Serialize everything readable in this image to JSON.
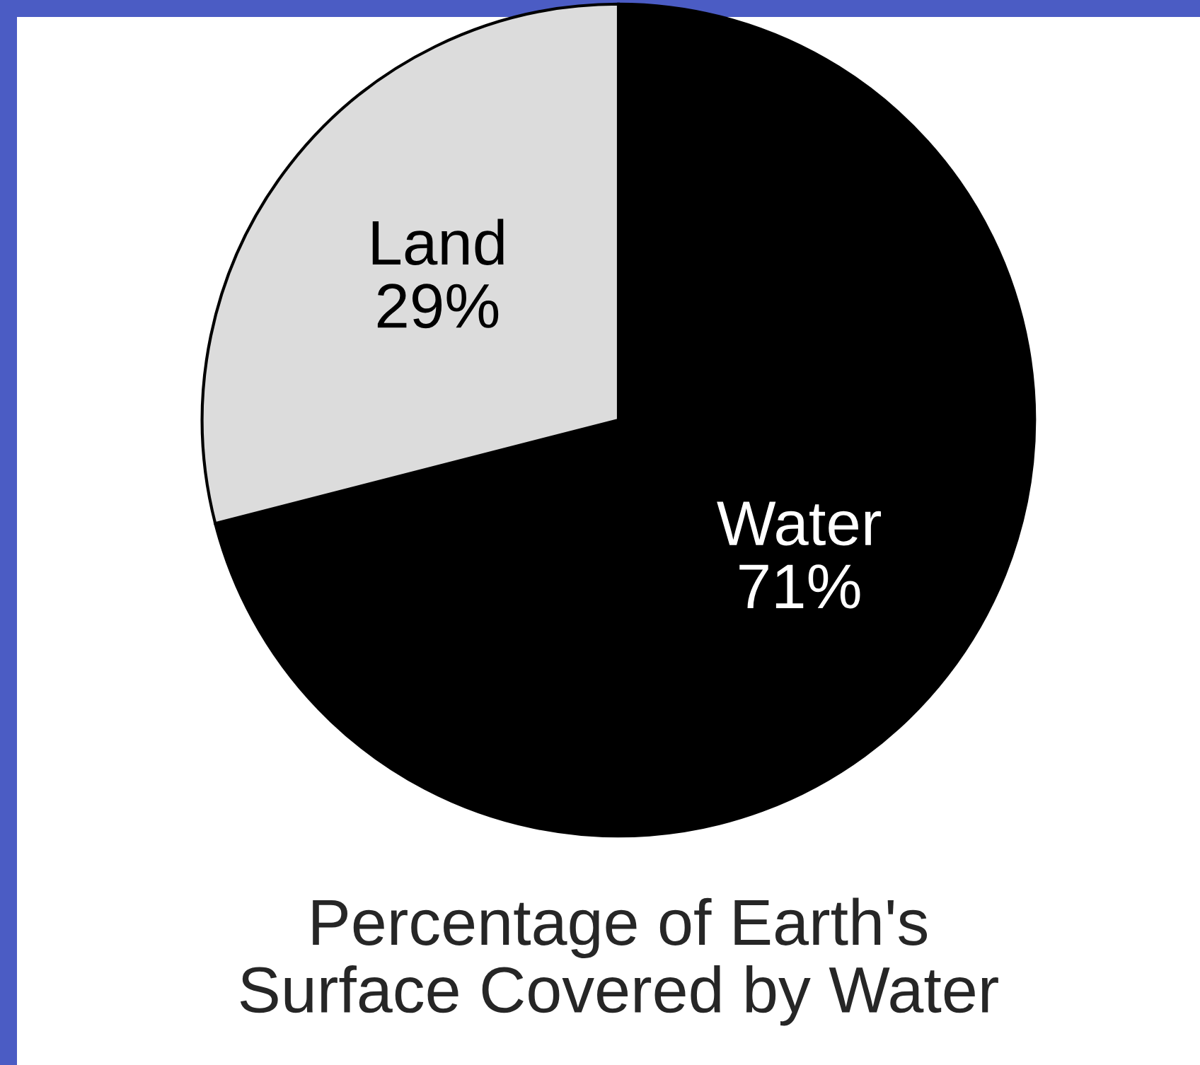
{
  "chart_data": {
    "type": "pie",
    "title": "Percentage of Earth's\nSurface Covered by Water",
    "categories": [
      "Water",
      "Land"
    ],
    "values": [
      71,
      29
    ],
    "value_labels": [
      "71%",
      "29%"
    ],
    "colors": [
      "#000000",
      "#dcdcdc"
    ]
  }
}
